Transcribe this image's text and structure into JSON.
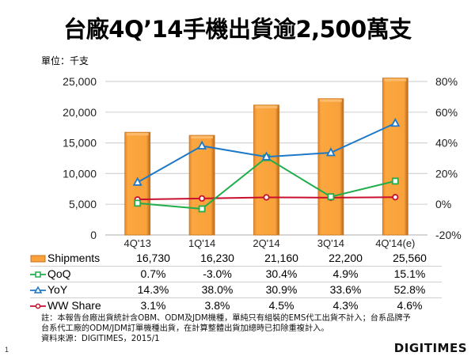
{
  "header": {
    "title": "台廠4Q’14手機出貨逾2,500萬支",
    "unit_label": "單位：千支"
  },
  "chart_data": {
    "type": "bar",
    "title": "台廠4Q’14手機出貨逾2,500萬支",
    "ylabel": "單位：千支",
    "categories": [
      "4Q'13",
      "1Q'14",
      "2Q'14",
      "3Q'14",
      "4Q'14(e)"
    ],
    "ylim": [
      0,
      25000
    ],
    "y2lim": [
      -20,
      80
    ],
    "yticks": [
      "25,000",
      "20,000",
      "15,000",
      "10,000",
      "5,000",
      "0"
    ],
    "yticks_values": [
      25000,
      20000,
      15000,
      10000,
      5000,
      0
    ],
    "y2ticks": [
      "80%",
      "60%",
      "40%",
      "20%",
      "0%",
      "-20%"
    ],
    "y2ticks_values": [
      80,
      60,
      40,
      20,
      0,
      -20
    ],
    "grid": true,
    "legend": "data-table-below",
    "series": [
      {
        "name": "Shipments",
        "kind": "bar",
        "axis": "left",
        "color": "#F9A13A",
        "values": [
          16730,
          16230,
          21160,
          22200,
          25560
        ],
        "labels": [
          "16,730",
          "16,230",
          "21,160",
          "22,200",
          "25,560"
        ]
      },
      {
        "name": "QoQ",
        "kind": "line",
        "axis": "right",
        "color": "#1FAE4B",
        "marker": "square",
        "values": [
          0.7,
          -3.0,
          30.4,
          4.9,
          15.1
        ],
        "labels": [
          "0.7%",
          "-3.0%",
          "30.4%",
          "4.9%",
          "15.1%"
        ]
      },
      {
        "name": "YoY",
        "kind": "line",
        "axis": "right",
        "color": "#1E78C8",
        "marker": "triangle",
        "values": [
          14.3,
          38.0,
          30.9,
          33.6,
          52.8
        ],
        "labels": [
          "14.3%",
          "38.0%",
          "30.9%",
          "33.6%",
          "52.8%"
        ]
      },
      {
        "name": "WW Share",
        "kind": "line",
        "axis": "right",
        "color": "#C8102E",
        "marker": "diamond",
        "values": [
          3.1,
          3.8,
          4.5,
          4.3,
          4.6
        ],
        "labels": [
          "3.1%",
          "3.8%",
          "4.5%",
          "4.3%",
          "4.6%"
        ]
      }
    ]
  },
  "footer": {
    "note_line1": "註：本報告台廠出貨統計含OBM、ODM及JDM機種，單純只有組裝的EMS代工出貨不計入；台系品牌予",
    "note_line2": "台系代工廠的ODM/JDM訂單機種出貨，在計算整體出貨加總時已扣除重複計入。",
    "source": "資料來源：DIGITIMES，2015/1",
    "page_number": "1",
    "logo_text": "DIGITIMES"
  }
}
